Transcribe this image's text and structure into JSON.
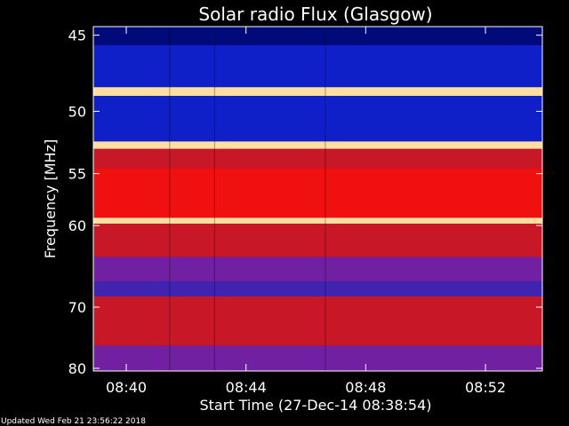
{
  "chart_data": {
    "type": "heatmap",
    "title": "Solar radio Flux (Glasgow)",
    "ylabel": "Frequency [MHz]",
    "xlabel": "Start Time (27-Dec-14 08:38:54)",
    "y_ticks": [
      45,
      50,
      55,
      60,
      70,
      80
    ],
    "x_ticks": [
      "08:40",
      "08:44",
      "08:48",
      "08:52"
    ],
    "x_tick_minutes": [
      1.1,
      5.1,
      9.1,
      13.1
    ],
    "x_range_minutes": [
      0,
      15
    ],
    "y_range_mhz": [
      44.5,
      80.5
    ],
    "y_scale": "reciprocal",
    "segment_breaks_minutes": [
      2.55,
      4.05,
      7.75
    ],
    "bands": [
      {
        "from": 44.5,
        "to": 45.6,
        "level": "dark-blue"
      },
      {
        "from": 45.6,
        "to": 48.3,
        "level": "blue"
      },
      {
        "from": 48.3,
        "to": 48.9,
        "level": "hot"
      },
      {
        "from": 48.9,
        "to": 52.3,
        "level": "blue"
      },
      {
        "from": 52.3,
        "to": 52.9,
        "level": "hot"
      },
      {
        "from": 52.9,
        "to": 54.5,
        "level": "red"
      },
      {
        "from": 54.5,
        "to": 59.2,
        "level": "bright-red"
      },
      {
        "from": 59.2,
        "to": 59.8,
        "level": "hot"
      },
      {
        "from": 59.8,
        "to": 63.5,
        "level": "red"
      },
      {
        "from": 63.5,
        "to": 66.5,
        "level": "purple"
      },
      {
        "from": 66.5,
        "to": 68.5,
        "level": "blue-purple"
      },
      {
        "from": 68.5,
        "to": 76.0,
        "level": "red"
      },
      {
        "from": 76.0,
        "to": 80.5,
        "level": "purple"
      }
    ],
    "colors": {
      "dark-blue": "#000a78",
      "blue": "#1020c8",
      "hot": "#ffe0a0",
      "red": "#c81828",
      "bright-red": "#f01010",
      "purple": "#7020a0",
      "blue-purple": "#4024b0"
    }
  },
  "footer": {
    "updated": "Updated Wed Feb 21 23:56:22 2018"
  }
}
